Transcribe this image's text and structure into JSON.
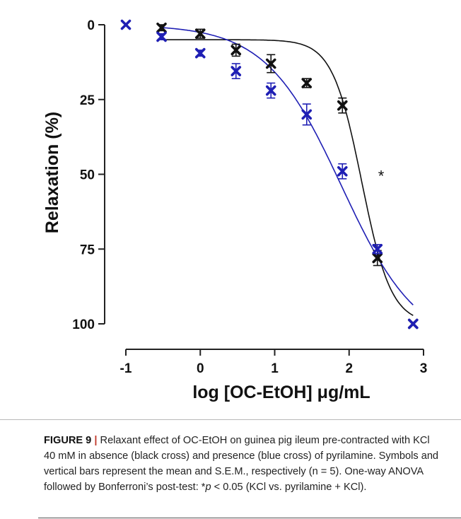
{
  "chart_data": {
    "type": "scatter",
    "xlabel": "log [OC-EtOH] μg/mL",
    "ylabel": "Relaxation (%)",
    "x_ticks": [
      -1,
      0,
      1,
      2,
      3
    ],
    "x_tick_labels": [
      "-1",
      "0",
      "1",
      "2",
      "3"
    ],
    "y_ticks": [
      0,
      25,
      50,
      75,
      100
    ],
    "y_tick_labels": [
      "0",
      "25",
      "50",
      "75",
      "100"
    ],
    "xlim": [
      -1,
      3
    ],
    "ylim": [
      0,
      100
    ],
    "y_inverted": true,
    "series": [
      {
        "color": "#111111",
        "marker": "cross",
        "points": [
          {
            "x": -0.52,
            "y": 1,
            "err": 1.0
          },
          {
            "x": 0.0,
            "y": 3,
            "err": 1.5
          },
          {
            "x": 0.48,
            "y": 8.5,
            "err": 2.0
          },
          {
            "x": 0.95,
            "y": 13,
            "err": 3.0
          },
          {
            "x": 1.43,
            "y": 19.5,
            "err": 1.5
          },
          {
            "x": 1.91,
            "y": 27,
            "err": 2.5
          },
          {
            "x": 2.38,
            "y": 78,
            "err": 2.5
          },
          {
            "x": 2.86,
            "y": 100,
            "err": 0.5
          }
        ],
        "fit": {
          "bottom": 5,
          "top": 100,
          "logEC50": 2.17,
          "hill": 2.2
        }
      },
      {
        "color": "#1f1fb4",
        "marker": "cross",
        "points": [
          {
            "x": -1.0,
            "y": 0,
            "err": 0.5
          },
          {
            "x": -0.52,
            "y": 4,
            "err": 1.0
          },
          {
            "x": 0.0,
            "y": 9.5,
            "err": 1.0
          },
          {
            "x": 0.48,
            "y": 15.5,
            "err": 2.5
          },
          {
            "x": 0.95,
            "y": 22,
            "err": 2.5
          },
          {
            "x": 1.43,
            "y": 30,
            "err": 3.5
          },
          {
            "x": 1.91,
            "y": 49,
            "err": 2.5
          },
          {
            "x": 2.38,
            "y": 75,
            "err": 1.5
          },
          {
            "x": 2.86,
            "y": 100,
            "err": 0.5
          }
        ],
        "fit": {
          "bottom": 0,
          "top": 108,
          "logEC50": 1.9,
          "hill": 0.85
        }
      }
    ],
    "annotations": [
      {
        "text": "*",
        "x": 2.43,
        "y": 50
      }
    ]
  },
  "caption": {
    "label": "FIGURE 9",
    "separator": "|",
    "text_before_p": "Relaxant effect of OC-EtOH on guinea pig ileum pre-contracted with KCl 40 mM in absence (black cross) and presence (blue cross) of pyrilamine. Symbols and vertical bars represent the mean and S.E.M., respectively (n = 5). One-way ANOVA followed by Bonferroni’s post-test: *",
    "p_symbol": "p",
    "text_after_p": " < 0.05 (KCl vs. pyrilamine + KCl)."
  }
}
